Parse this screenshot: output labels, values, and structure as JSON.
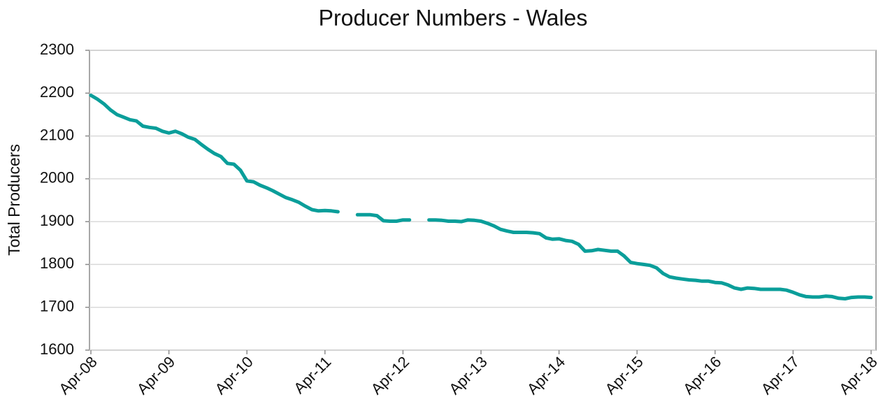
{
  "chart_data": {
    "type": "line",
    "title": "Producer Numbers - Wales",
    "ylabel": "Total Producers",
    "categories": [
      "Apr-08",
      null,
      null,
      null,
      null,
      null,
      null,
      null,
      null,
      null,
      null,
      null,
      "Apr-09",
      null,
      null,
      null,
      null,
      null,
      null,
      null,
      null,
      null,
      null,
      null,
      "Apr-10",
      null,
      null,
      null,
      null,
      null,
      null,
      null,
      null,
      null,
      null,
      null,
      "Apr-11",
      null,
      null,
      null,
      null,
      null,
      null,
      null,
      null,
      null,
      null,
      null,
      "Apr-12",
      null,
      null,
      null,
      null,
      null,
      null,
      null,
      null,
      null,
      null,
      null,
      "Apr-13",
      null,
      null,
      null,
      null,
      null,
      null,
      null,
      null,
      null,
      null,
      null,
      "Apr-14",
      null,
      null,
      null,
      null,
      null,
      null,
      null,
      null,
      null,
      null,
      null,
      "Apr-15",
      null,
      null,
      null,
      null,
      null,
      null,
      null,
      null,
      null,
      null,
      null,
      "Apr-16",
      null,
      null,
      null,
      null,
      null,
      null,
      null,
      null,
      null,
      null,
      null,
      "Apr-17",
      null,
      null,
      null,
      null,
      null,
      null,
      null,
      null,
      null,
      null,
      null,
      "Apr-18"
    ],
    "series": [
      {
        "name": "Total Producers",
        "color": "#0a9e9a",
        "values": [
          2195,
          2186,
          2175,
          2161,
          2150,
          2144,
          2138,
          2135,
          2123,
          2120,
          2118,
          2111,
          2107,
          2111,
          2105,
          2097,
          2092,
          2080,
          2069,
          2059,
          2052,
          2036,
          2034,
          2020,
          1995,
          1993,
          1985,
          1979,
          1972,
          1964,
          1956,
          1951,
          1945,
          1936,
          1928,
          1925,
          1926,
          1925,
          1923,
          null,
          null,
          1916,
          1916,
          1916,
          1914,
          1902,
          1901,
          1901,
          1904,
          1904,
          null,
          null,
          1904,
          1904,
          1903,
          1901,
          1901,
          1900,
          1904,
          1903,
          1901,
          1896,
          1890,
          1882,
          1878,
          1875,
          1875,
          1875,
          1874,
          1872,
          1862,
          1859,
          1860,
          1856,
          1854,
          1847,
          1831,
          1832,
          1835,
          1833,
          1831,
          1831,
          1820,
          1805,
          1802,
          1800,
          1798,
          1792,
          1779,
          1771,
          1768,
          1766,
          1764,
          1763,
          1761,
          1761,
          1758,
          1757,
          1752,
          1745,
          1742,
          1745,
          1744,
          1742,
          1742,
          1742,
          1742,
          1740,
          1735,
          1729,
          1725,
          1724,
          1724,
          1726,
          1725,
          1721,
          1720,
          1723,
          1724,
          1724,
          1723
        ]
      }
    ],
    "ylim": [
      1600,
      2300
    ],
    "yticks": [
      1600,
      1700,
      1800,
      1900,
      2000,
      2100,
      2200,
      2300
    ],
    "grid": true
  }
}
